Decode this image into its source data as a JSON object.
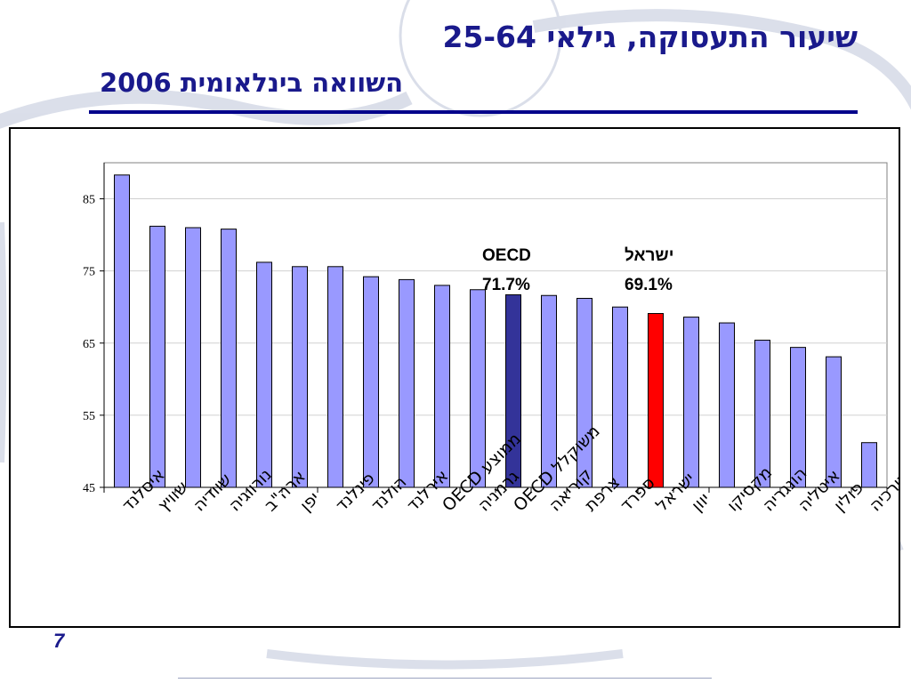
{
  "slide": {
    "title": "שיעור התעסוקה, גילאי 25-64",
    "subtitle": "השוואה בינלאומית 2006",
    "page_number": "7"
  },
  "colors": {
    "bar": "#9999ff",
    "oecd_bar": "#333399",
    "israel_bar": "#ff0000",
    "title": "#1a1a8c"
  },
  "chart_data": {
    "type": "bar",
    "title": "",
    "xlabel": "",
    "ylabel": "",
    "ylim": [
      45,
      90
    ],
    "yticks": [
      45,
      55,
      65,
      75,
      85
    ],
    "grid": true,
    "categories": [
      "איסלנד",
      "שוויץ",
      "שוודיה",
      "נורווגיה",
      "ארה\"ב",
      "יפן",
      "פינלנד",
      "הולנד",
      "אירלנד",
      "ממוצע OECD",
      "גרמניה",
      "משוקלל OECD",
      "קוריאה",
      "צרפת",
      "ספרד",
      "ישראל",
      "יוון",
      "מקסיקו",
      "הונגריה",
      "איטליה",
      "פולין",
      "תורכיה"
    ],
    "values": [
      88.3,
      81.2,
      81.0,
      80.8,
      76.2,
      75.6,
      75.6,
      74.2,
      73.8,
      73.0,
      72.4,
      71.7,
      71.6,
      71.2,
      70.0,
      69.1,
      68.6,
      67.8,
      65.4,
      64.4,
      63.1,
      51.2
    ],
    "highlights": {
      "11": "oecd",
      "15": "israel"
    },
    "annotations": [
      {
        "lines": [
          "OECD",
          "71.7%"
        ],
        "target": 11
      },
      {
        "lines": [
          "ישראל",
          "69.1%"
        ],
        "target": 15
      }
    ]
  }
}
